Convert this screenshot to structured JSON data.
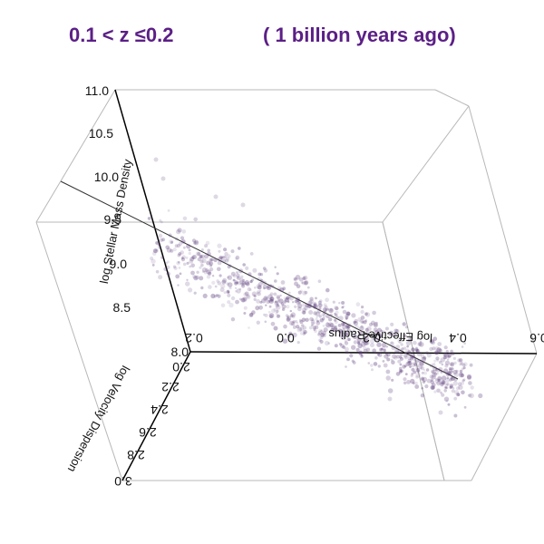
{
  "header": {
    "redshift": "0.1 < z ≤0.2",
    "epoch": "( 1 billion years ago)"
  },
  "chart_data": {
    "type": "scatter",
    "projection": "3d",
    "axes": {
      "z": {
        "label": "log Stellar Mass Density",
        "ticks": [
          "11.0",
          "10.5",
          "10.0",
          "9.5",
          "9.0",
          "8.5",
          "8.0"
        ],
        "range": [
          8.0,
          11.0
        ]
      },
      "x": {
        "label": "log Effective Radius",
        "ticks": [
          "0.2",
          "0.0",
          "0.2",
          "0.4",
          "0.6"
        ],
        "range": [
          -0.2,
          0.6
        ]
      },
      "y": {
        "label": "log Velocity Dispersion",
        "ticks": [
          "2.0",
          "2.2",
          "2.4",
          "2.6",
          "2.8",
          "3.0"
        ],
        "range": [
          2.0,
          3.0
        ]
      }
    },
    "point_color": "#5a3a7a",
    "accent_color": "#5b1f86",
    "trend": "strong negative correlation between log Stellar Mass Density and log Effective Radius (fundamental plane of galaxies)"
  }
}
